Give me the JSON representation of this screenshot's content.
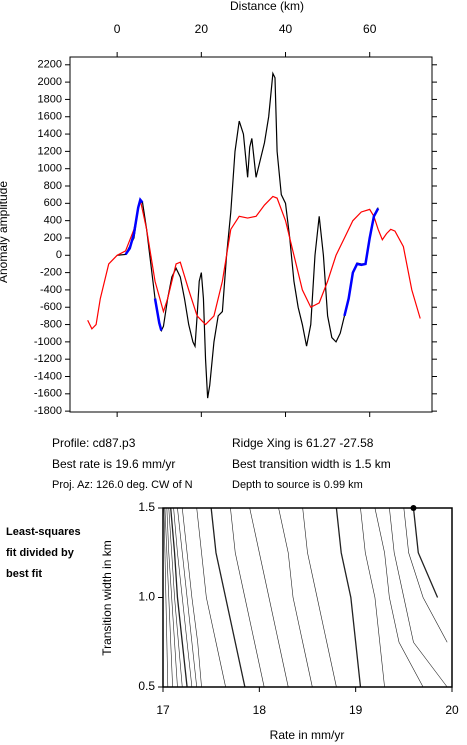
{
  "chart_data": [
    {
      "type": "line",
      "title": "Distance (km)",
      "y_label": "Anomaly amplitude",
      "xlim": [
        -11.2,
        74.8
      ],
      "xticks": [
        0,
        20,
        40,
        60
      ],
      "ylim": [
        -1810,
        2290
      ],
      "yticks": [
        -1800,
        -1600,
        -1400,
        -1200,
        -1000,
        -800,
        -600,
        -400,
        -200,
        0,
        200,
        400,
        600,
        800,
        1000,
        1200,
        1400,
        1600,
        1800,
        2000,
        2200
      ],
      "series": [
        {
          "color": "#000000",
          "x": [
            0,
            2,
            4,
            5,
            5.5,
            6,
            7,
            8,
            9,
            10,
            10.5,
            11,
            12,
            13,
            14,
            15,
            16,
            17,
            18,
            18.5,
            19,
            19.5,
            20,
            20.5,
            21,
            21.5,
            22,
            23,
            24,
            25,
            26,
            27,
            28,
            29,
            30,
            31,
            31.5,
            32,
            33,
            34,
            35,
            36,
            37,
            37.5,
            38,
            39,
            40,
            41,
            42,
            43,
            44,
            45,
            46,
            47,
            48,
            49,
            50,
            51,
            52,
            53,
            54,
            55,
            56,
            57,
            58,
            59,
            60,
            61,
            62
          ],
          "values": [
            0,
            10,
            200,
            550,
            640,
            620,
            300,
            -100,
            -500,
            -800,
            -870,
            -820,
            -500,
            -250,
            -150,
            -250,
            -500,
            -800,
            -1000,
            -1050,
            -700,
            -300,
            -200,
            -500,
            -1200,
            -1650,
            -1500,
            -1000,
            -700,
            -650,
            0,
            500,
            1200,
            1550,
            1400,
            900,
            1250,
            1350,
            900,
            1100,
            1300,
            1600,
            2100,
            2050,
            1200,
            700,
            600,
            200,
            -300,
            -600,
            -800,
            -1050,
            -800,
            0,
            450,
            0,
            -700,
            -950,
            -1000,
            -900,
            -700,
            -500,
            -200,
            -90,
            -100,
            -100,
            200,
            450,
            550
          ]
        },
        {
          "color": "#ff0000",
          "x": [
            -7,
            -6,
            -5,
            -4,
            -2,
            0,
            2,
            4,
            5.5,
            7,
            9,
            11,
            12,
            14,
            15,
            17,
            19,
            21,
            23,
            25,
            27,
            29,
            31,
            33,
            35,
            37,
            38,
            40,
            42,
            44,
            46,
            48,
            50,
            52,
            54,
            56,
            58,
            60,
            61,
            62,
            63,
            64,
            65,
            66,
            68,
            70,
            72
          ],
          "values": [
            -750,
            -850,
            -800,
            -500,
            -100,
            0,
            50,
            300,
            640,
            300,
            -300,
            -650,
            -500,
            -100,
            -80,
            -400,
            -700,
            -800,
            -700,
            -300,
            300,
            450,
            430,
            450,
            580,
            680,
            660,
            400,
            0,
            -400,
            -600,
            -550,
            -300,
            0,
            200,
            400,
            500,
            530,
            450,
            300,
            180,
            250,
            300,
            280,
            100,
            -400,
            -730
          ]
        },
        {
          "color": "#0000ff",
          "x": [
            2,
            3,
            4,
            5,
            5.5,
            6,
            null,
            9,
            10,
            10.5,
            null,
            54,
            55,
            56,
            57,
            58,
            59,
            60,
            61,
            62
          ],
          "values": [
            10,
            80,
            250,
            550,
            640,
            610,
            null,
            -500,
            -780,
            -870,
            null,
            -700,
            -500,
            -200,
            -100,
            -110,
            -100,
            200,
            450,
            540
          ]
        }
      ],
      "annotations": [
        "Profile: cd87.p3",
        "Ridge Xing is 61.27 -27.58",
        "Best rate is 19.6 mm/yr",
        "Best transition width is 1.5 km",
        "Proj. Az: 126.0 deg. CW of N",
        "Depth to source is   0.99 km"
      ]
    },
    {
      "type": "contour",
      "x_label": "Rate in mm/yr",
      "y_label": "Transition width in km",
      "side_note": [
        "Least-squares",
        "fit divided by",
        "best fit"
      ],
      "xlim": [
        17,
        20
      ],
      "xticks": [
        17,
        18,
        19,
        20
      ],
      "ylim": [
        0.5,
        1.5
      ],
      "yticks": [
        {
          "value": 0.5,
          "label": "0.5"
        },
        {
          "value": 1.0,
          "label": "1.0"
        },
        {
          "value": 1.5,
          "label": "1.5"
        }
      ],
      "contour_y": [
        0.5,
        0.75,
        1.0,
        1.25,
        1.5
      ],
      "contours": [
        [
          17.05,
          17.04,
          17.03,
          17.02,
          17.01
        ],
        [
          17.1,
          17.08,
          17.06,
          17.04,
          17.02
        ],
        [
          17.15,
          17.12,
          17.09,
          17.06,
          17.04
        ],
        [
          17.2,
          17.16,
          17.12,
          17.09,
          17.06
        ],
        [
          17.25,
          17.2,
          17.15,
          17.12,
          17.08
        ],
        [
          17.3,
          17.25,
          17.2,
          17.15,
          17.11
        ],
        [
          17.35,
          17.3,
          17.25,
          17.2,
          17.15
        ],
        [
          17.4,
          17.36,
          17.3,
          17.25,
          17.2
        ],
        [
          17.65,
          17.55,
          17.45,
          17.4,
          17.35
        ],
        [
          17.85,
          17.75,
          17.65,
          17.55,
          17.5
        ],
        [
          18.05,
          17.95,
          17.85,
          17.75,
          17.7
        ],
        [
          18.3,
          18.2,
          18.1,
          18.0,
          17.9
        ],
        [
          18.55,
          18.45,
          18.35,
          18.3,
          18.2
        ],
        [
          18.8,
          18.7,
          18.6,
          18.5,
          18.45
        ],
        [
          19.05,
          19.0,
          18.95,
          18.85,
          18.8
        ],
        [
          19.3,
          19.25,
          19.2,
          19.1,
          19.05
        ],
        [
          19.7,
          19.45,
          19.35,
          19.3,
          19.2
        ],
        [
          19.95,
          19.6,
          19.5,
          19.4,
          19.35
        ],
        [
          null,
          19.95,
          19.7,
          19.55,
          19.5
        ],
        [
          null,
          null,
          19.85,
          19.65,
          19.6
        ]
      ],
      "best": {
        "x": 19.6,
        "y": 1.5
      }
    }
  ]
}
